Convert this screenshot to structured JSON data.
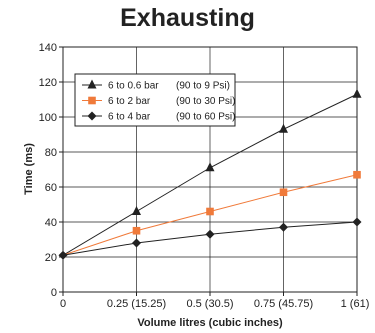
{
  "chart_data": {
    "type": "line",
    "title": "Exhausting",
    "xlabel": "Volume litres (cubic inches)",
    "ylabel": "Time (ms)",
    "x": [
      0,
      0.25,
      0.5,
      0.75,
      1
    ],
    "x_tick_labels": [
      "0",
      "0.25 (15.25)",
      "0.5 (30.5)",
      "0.75 (45.75)",
      "1 (61)"
    ],
    "xlim": [
      0,
      1
    ],
    "ylim": [
      0,
      140
    ],
    "y_ticks": [
      0,
      20,
      40,
      60,
      80,
      100,
      120,
      140
    ],
    "grid": true,
    "legend_position": "top-left",
    "series": [
      {
        "name": "6 to 0.6 bar",
        "label_extra": "(90 to 9 Psi)",
        "color": "#222222",
        "marker": "triangle",
        "values": [
          21,
          46,
          71,
          93,
          113
        ]
      },
      {
        "name": "6 to 2 bar",
        "label_extra": "(90 to 30 Psi)",
        "color": "#f07a3a",
        "marker": "square",
        "values": [
          21,
          35,
          46,
          57,
          67
        ]
      },
      {
        "name": "6 to 4 bar",
        "label_extra": "(90 to 60 Psi)",
        "color": "#222222",
        "marker": "diamond",
        "values": [
          21,
          28,
          33,
          37,
          40
        ]
      }
    ]
  }
}
